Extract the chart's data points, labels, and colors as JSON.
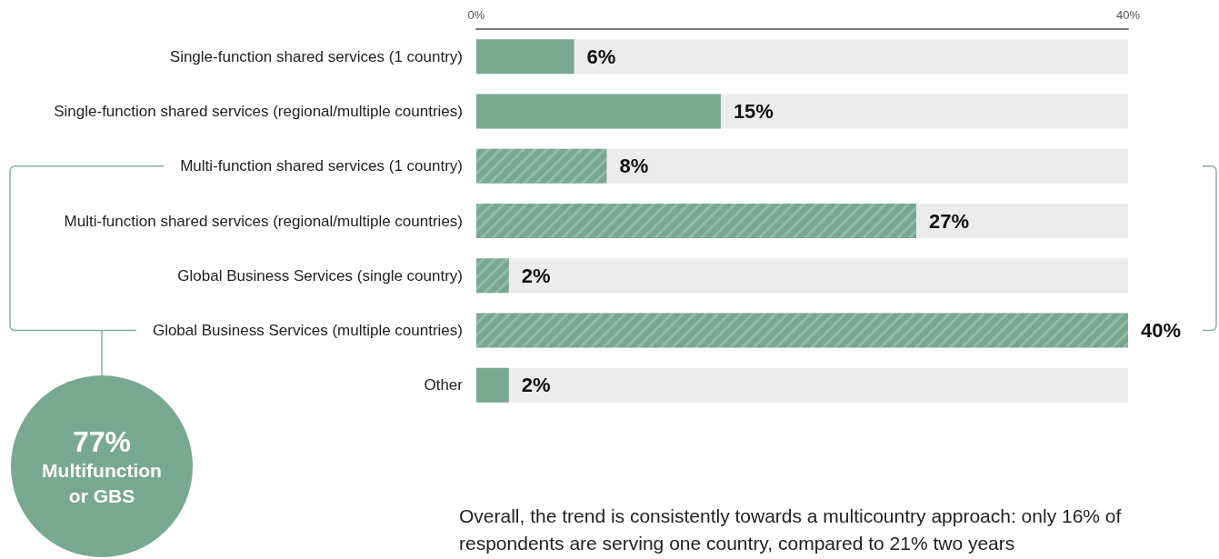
{
  "chart_data": {
    "type": "bar",
    "orientation": "horizontal",
    "categories": [
      "Single-function shared services (1 country)",
      "Single-function shared services (regional/multiple countries)",
      "Multi-function shared services (1 country)",
      "Multi-function shared services (regional/multiple countries)",
      "Global Business Services (single country)",
      "Global Business Services (multiple countries)",
      "Other"
    ],
    "values": [
      6,
      15,
      8,
      27,
      2,
      40,
      2
    ],
    "value_labels": [
      "6%",
      "15%",
      "8%",
      "27%",
      "2%",
      "40%",
      "2%"
    ],
    "color": "#78a892",
    "xlim": [
      0,
      40
    ],
    "xticks": [
      {
        "value": 0,
        "label": "0%"
      },
      {
        "value": 40,
        "label": "40%"
      }
    ],
    "annotations": [
      "77%",
      "Multifunction or GBS",
      "Overall, the trend is consistently towards a multicountry approach: only 16% of respondents are serving one country, compared to 21% two years"
    ]
  }
}
